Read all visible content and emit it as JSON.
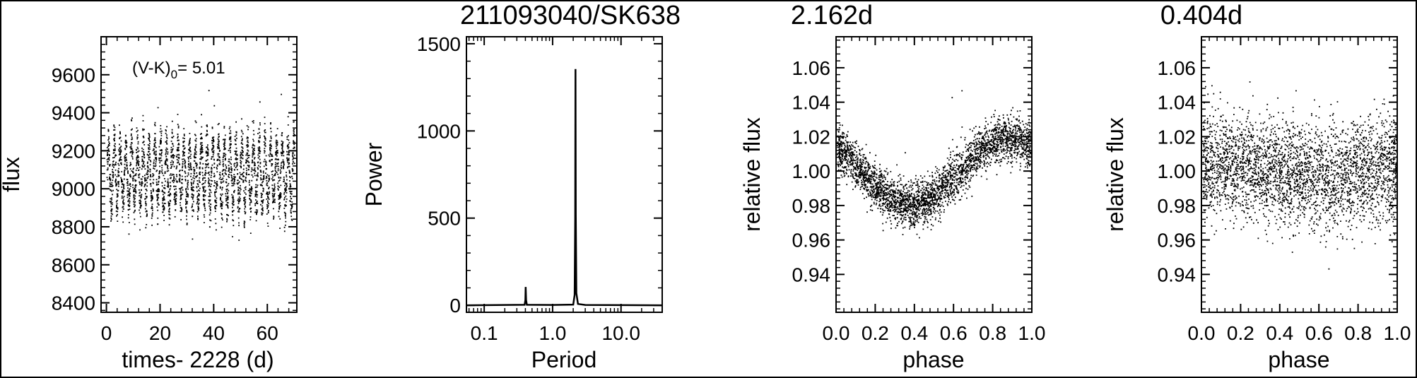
{
  "figure_title": "211093040/SK638",
  "chart_data": [
    {
      "type": "scatter",
      "title": "",
      "xlabel": "times- 2228 (d)",
      "ylabel": "flux",
      "xlim": [
        -2,
        71
      ],
      "ylim": [
        8350,
        9800
      ],
      "xticks": [
        0,
        20,
        40,
        60
      ],
      "xtick_labels": [
        "0",
        "20",
        "40",
        "60"
      ],
      "yticks": [
        8400,
        8600,
        8800,
        9000,
        9200,
        9400,
        9600
      ],
      "ytick_labels": [
        "8400",
        "8600",
        "8800",
        "9000",
        "9200",
        "9400",
        "9600"
      ],
      "annotation": {
        "main": "(V-K)",
        "sub": "0",
        "rest": "= 5.01"
      },
      "series": [
        {
          "period": 2.162,
          "mean": 9080,
          "amplitude": 160,
          "spread": 55,
          "t_start": 0,
          "t_end": 70
        }
      ],
      "outliers": [
        [
          19,
          9430
        ],
        [
          38,
          9520
        ],
        [
          40,
          9440
        ],
        [
          57,
          9460
        ],
        [
          65,
          9500
        ]
      ],
      "grid": false
    },
    {
      "type": "line",
      "title": "",
      "xlabel": "Period",
      "ylabel": "Power",
      "xscale": "log",
      "xlim": [
        0.055,
        40
      ],
      "ylim": [
        -40,
        1540
      ],
      "xticks": [
        0.1,
        1.0,
        10.0
      ],
      "xtick_labels": [
        "0.1",
        "1.0",
        "10.0"
      ],
      "yticks": [
        0,
        500,
        1000,
        1500
      ],
      "ytick_labels": [
        "0",
        "500",
        "1000",
        "1500"
      ],
      "series": [
        {
          "x": [
            0.055,
            0.39,
            0.4,
            0.404,
            0.41,
            0.42,
            1.0,
            2.0,
            2.1,
            2.14,
            2.162,
            2.18,
            2.22,
            2.35,
            3.0,
            40
          ],
          "y": [
            0,
            3,
            30,
            105,
            30,
            3,
            2,
            4,
            60,
            500,
            1355,
            520,
            70,
            8,
            2,
            0
          ]
        }
      ],
      "grid": false
    },
    {
      "type": "scatter",
      "title": "2.162d",
      "xlabel": "phase",
      "ylabel": "relative flux",
      "xlim": [
        0,
        1
      ],
      "ylim": [
        0.918,
        1.078
      ],
      "xticks": [
        0,
        0.2,
        0.4,
        0.6,
        0.8,
        1.0
      ],
      "xtick_labels": [
        "0.0",
        "0.2",
        "0.4",
        "0.6",
        "0.8",
        "1.0"
      ],
      "yticks": [
        0.94,
        0.96,
        0.98,
        1.0,
        1.02,
        1.04,
        1.06
      ],
      "ytick_labels": [
        "0.94",
        "0.96",
        "0.98",
        "1.00",
        "1.02",
        "1.04",
        "1.06"
      ],
      "series": [
        {
          "mean": 1.0,
          "amplitude": 0.0195,
          "min_phase": 0.38,
          "spread": 0.0065
        }
      ],
      "outliers": [
        [
          0.59,
          1.043
        ],
        [
          0.64,
          1.047
        ],
        [
          0.35,
          1.011
        ],
        [
          0.98,
          1.045
        ]
      ],
      "grid": false
    },
    {
      "type": "scatter",
      "title": "0.404d",
      "xlabel": "phase",
      "ylabel": "relative flux",
      "xlim": [
        0,
        1
      ],
      "ylim": [
        0.918,
        1.078
      ],
      "xticks": [
        0,
        0.2,
        0.4,
        0.6,
        0.8,
        1.0
      ],
      "xtick_labels": [
        "0.0",
        "0.2",
        "0.4",
        "0.6",
        "0.8",
        "1.0"
      ],
      "yticks": [
        0.94,
        0.96,
        0.98,
        1.0,
        1.02,
        1.04,
        1.06
      ],
      "ytick_labels": [
        "0.94",
        "0.96",
        "0.98",
        "1.00",
        "1.02",
        "1.04",
        "1.06"
      ],
      "series": [
        {
          "mean": 1.0,
          "amplitude": 0.004,
          "min_phase": 0.6,
          "spread": 0.0125
        }
      ],
      "outliers": [
        [
          0.03,
          1.045
        ],
        [
          0.13,
          1.04
        ],
        [
          0.48,
          1.047
        ],
        [
          0.88,
          1.042
        ],
        [
          0.95,
          1.035
        ]
      ],
      "grid": false
    }
  ]
}
